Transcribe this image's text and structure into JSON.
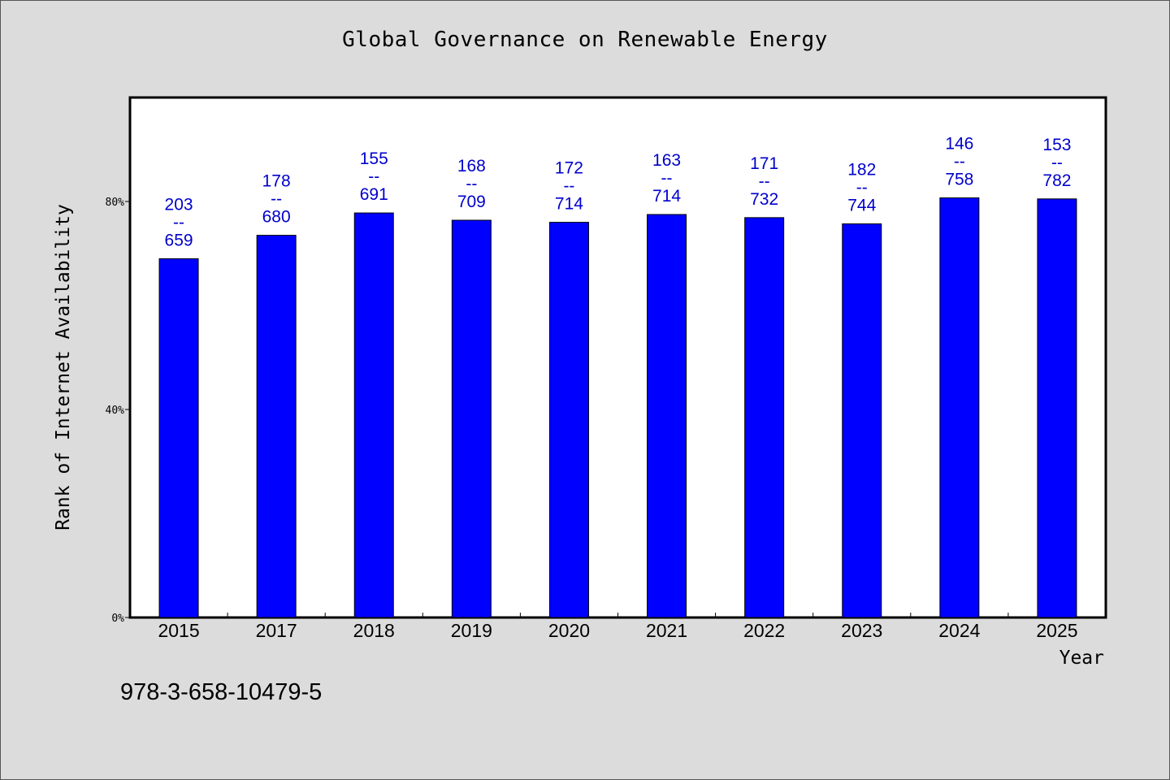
{
  "chart_data": {
    "type": "bar",
    "title": "Global Governance on Renewable Energy",
    "xlabel": "Year",
    "ylabel": "Rank of Internet Availability",
    "categories": [
      "2015",
      "2017",
      "2018",
      "2019",
      "2020",
      "2021",
      "2022",
      "2023",
      "2024",
      "2025"
    ],
    "values": [
      69,
      73.5,
      77.8,
      76.4,
      76,
      77.5,
      76.9,
      75.7,
      80.7,
      80.5
    ],
    "value_unit": "%",
    "data_labels": [
      {
        "top": "203",
        "sep": "--",
        "bottom": "659"
      },
      {
        "top": "178",
        "sep": "--",
        "bottom": "680"
      },
      {
        "top": "155",
        "sep": "--",
        "bottom": "691"
      },
      {
        "top": "168",
        "sep": "--",
        "bottom": "709"
      },
      {
        "top": "172",
        "sep": "--",
        "bottom": "714"
      },
      {
        "top": "163",
        "sep": "--",
        "bottom": "714"
      },
      {
        "top": "171",
        "sep": "--",
        "bottom": "732"
      },
      {
        "top": "182",
        "sep": "--",
        "bottom": "744"
      },
      {
        "top": "146",
        "sep": "--",
        "bottom": "758"
      },
      {
        "top": "153",
        "sep": "--",
        "bottom": "782"
      }
    ],
    "ylim": [
      0,
      100
    ],
    "yticks": [
      0,
      40,
      80
    ],
    "ytick_labels": [
      "0%",
      "40%",
      "80%"
    ],
    "grid": false,
    "legend": "none",
    "bar_color": "#0000ff",
    "label_color": "#0000cc",
    "background_color": "#dcdcdc",
    "plot_background": "#ffffff"
  },
  "footer": {
    "isbn": "978-3-658-10479-5"
  }
}
